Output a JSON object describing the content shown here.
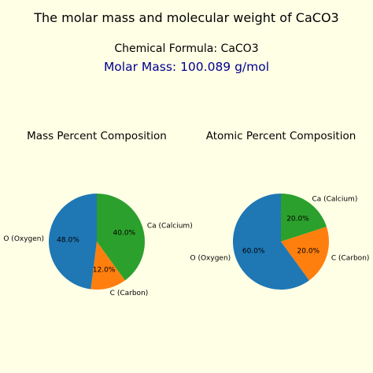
{
  "header": {
    "title": "The molar mass and molecular weight of CaCO3",
    "formula": "Chemical Formula: CaCO3",
    "molar_mass": "Molar Mass: 100.089 g/mol",
    "molar_mass_color": "#00008b"
  },
  "background_color": "#ffffe6",
  "chart_data": [
    {
      "type": "pie",
      "title": "Mass Percent Composition",
      "categories": [
        "Ca (Calcium)",
        "C (Carbon)",
        "O (Oxygen)"
      ],
      "values": [
        40.0,
        12.0,
        48.0
      ],
      "value_labels": [
        "40.0%",
        "12.0%",
        "48.0%"
      ],
      "colors": [
        "#2ca02c",
        "#ff7f0e",
        "#1f77b4"
      ],
      "start_angle_deg": 90,
      "direction": "clockwise"
    },
    {
      "type": "pie",
      "title": "Atomic Percent Composition",
      "categories": [
        "Ca (Calcium)",
        "C (Carbon)",
        "O (Oxygen)"
      ],
      "values": [
        20.0,
        20.0,
        60.0
      ],
      "value_labels": [
        "20.0%",
        "20.0%",
        "60.0%"
      ],
      "colors": [
        "#2ca02c",
        "#ff7f0e",
        "#1f77b4"
      ],
      "start_angle_deg": 90,
      "direction": "clockwise"
    }
  ]
}
